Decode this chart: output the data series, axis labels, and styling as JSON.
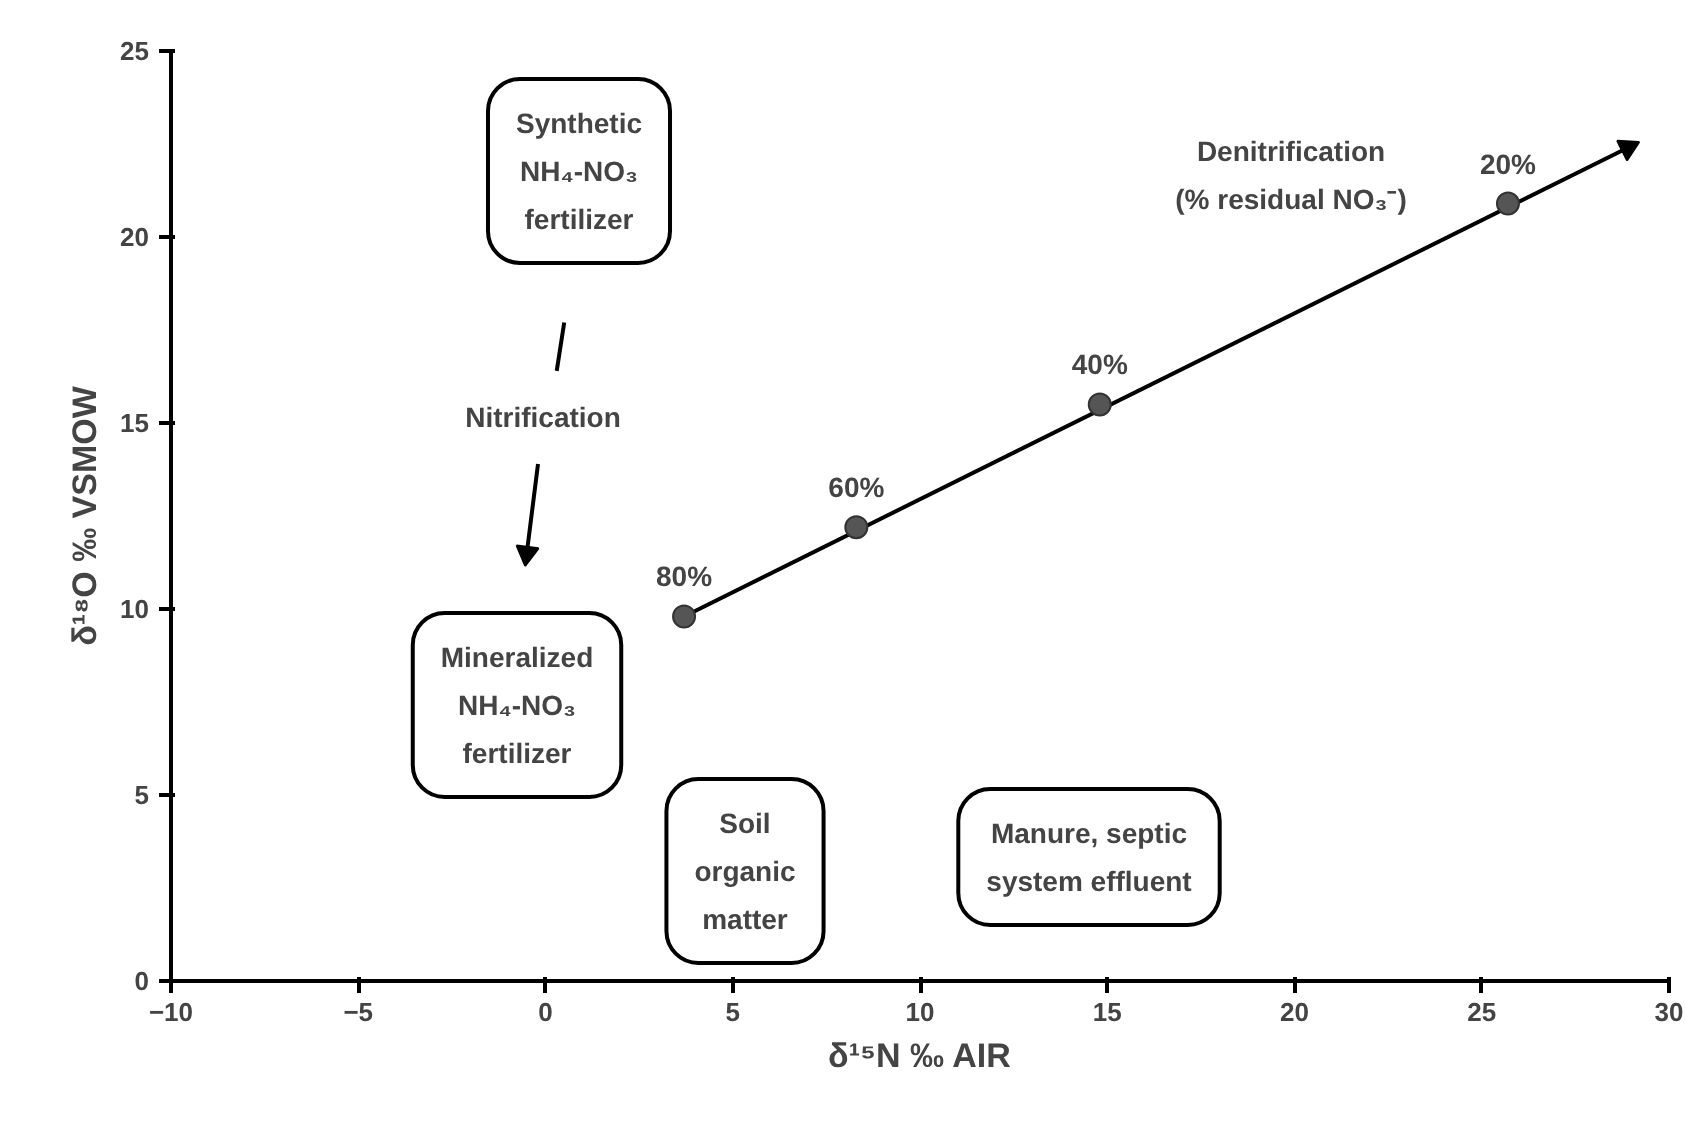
{
  "chart_data": {
    "type": "scatter",
    "xlabel": "δ¹⁵N ‰ AIR",
    "ylabel": "δ¹⁸O ‰ VSMOW",
    "xlim": [
      -10,
      30
    ],
    "xticks": [
      -10,
      -5,
      0,
      5,
      10,
      15,
      20,
      25,
      30
    ],
    "ylim": [
      0,
      25
    ],
    "yticks": [
      0,
      5,
      10,
      15,
      20,
      25
    ],
    "grid": false,
    "series": [
      {
        "type": "line",
        "color": "#000000",
        "x": [
          3.7,
          28.9
        ],
        "values": [
          9.8,
          22.4
        ]
      },
      {
        "type": "line",
        "color": "#000000",
        "x": [
          0.5,
          0.3,
          0,
          -0.2,
          -0.5
        ],
        "values": [
          17.7,
          16.4,
          null,
          13.9,
          11.5
        ]
      },
      {
        "color": "#555555",
        "x": [
          3.7,
          8.3,
          14.8,
          25.7
        ],
        "values": [
          9.8,
          12.2,
          15.5,
          20.9
        ],
        "marker": "circle"
      }
    ],
    "annotations": [
      "Denitrification\n(% residual NO₃⁻)",
      "Nitrification",
      "Synthetic\nNH₄-NO₃\nfertilizer",
      "Mineralized\nNH₄-NO₃\nfertilizer",
      "Soil\norganic\nmatter",
      "Manure, septic\nsystem effluent",
      {
        "text": "80%",
        "x": 3.7,
        "y": 9.8
      },
      {
        "text": "60%",
        "x": 8.3,
        "y": 12.2
      },
      {
        "text": "40%",
        "x": 14.8,
        "y": 15.5
      },
      {
        "text": "20%",
        "x": 25.7,
        "y": 20.9
      }
    ]
  }
}
